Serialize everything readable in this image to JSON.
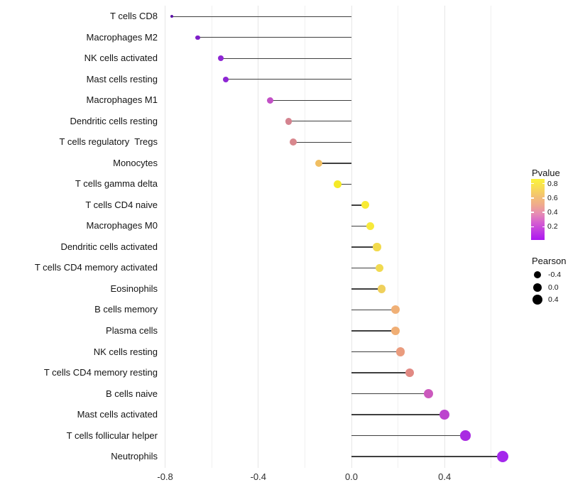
{
  "chart_data": {
    "type": "scatter",
    "style": "lollipop-horizontal",
    "title": "",
    "xlabel": "",
    "ylabel": "",
    "xlim": [
      -0.845,
      0.72
    ],
    "x_ticks": [
      -0.8,
      -0.4,
      0.0,
      0.4
    ],
    "x_tick_labels": [
      "-0.8",
      "-0.4",
      "0.0",
      "0.4"
    ],
    "gridline_values": [
      -0.8,
      -0.6,
      -0.4,
      -0.2,
      0.0,
      0.2,
      0.4,
      0.6
    ],
    "grid": "vertical only, light gray, white background",
    "baseline_x": 0.0,
    "points": [
      {
        "label": "T cells CD8",
        "pearson": -0.77,
        "dot_color": "#5C12A6",
        "dot_radius": 2.0
      },
      {
        "label": "Macrophages M2",
        "pearson": -0.66,
        "dot_color": "#7E1EC8",
        "dot_radius": 3.2
      },
      {
        "label": "NK cells activated",
        "pearson": -0.56,
        "dot_color": "#8E26D4",
        "dot_radius": 4.0
      },
      {
        "label": "Mast cells resting",
        "pearson": -0.54,
        "dot_color": "#8E26D4",
        "dot_radius": 4.1
      },
      {
        "label": "Macrophages M1",
        "pearson": -0.35,
        "dot_color": "#C250C6",
        "dot_radius": 4.6
      },
      {
        "label": "Dendritic cells resting",
        "pearson": -0.27,
        "dot_color": "#D4838F",
        "dot_radius": 4.9
      },
      {
        "label": "T cells regulatory  Tregs",
        "pearson": -0.25,
        "dot_color": "#D8878D",
        "dot_radius": 5.0
      },
      {
        "label": "Monocytes",
        "pearson": -0.14,
        "dot_color": "#F0BE62",
        "dot_radius": 5.2
      },
      {
        "label": "T cells gamma delta",
        "pearson": -0.06,
        "dot_color": "#F5EA27",
        "dot_radius": 5.4
      },
      {
        "label": "T cells CD4 naive",
        "pearson": 0.06,
        "dot_color": "#F8EB34",
        "dot_radius": 5.5
      },
      {
        "label": "Macrophages M0",
        "pearson": 0.08,
        "dot_color": "#F7E93B",
        "dot_radius": 5.6
      },
      {
        "label": "Dendritic cells activated",
        "pearson": 0.11,
        "dot_color": "#F2DA4C",
        "dot_radius": 5.7
      },
      {
        "label": "T cells CD4 memory activated",
        "pearson": 0.12,
        "dot_color": "#F1DA50",
        "dot_radius": 5.7
      },
      {
        "label": "Eosinophils",
        "pearson": 0.13,
        "dot_color": "#EFD05C",
        "dot_radius": 5.8
      },
      {
        "label": "B cells memory",
        "pearson": 0.19,
        "dot_color": "#F0B076",
        "dot_radius": 6.0
      },
      {
        "label": "Plasma cells",
        "pearson": 0.19,
        "dot_color": "#F0AE74",
        "dot_radius": 6.0
      },
      {
        "label": "NK cells resting",
        "pearson": 0.21,
        "dot_color": "#EA9C7E",
        "dot_radius": 6.1
      },
      {
        "label": "T cells CD4 memory resting",
        "pearson": 0.25,
        "dot_color": "#E18983",
        "dot_radius": 6.3
      },
      {
        "label": "B cells naive",
        "pearson": 0.33,
        "dot_color": "#CB59BD",
        "dot_radius": 6.6
      },
      {
        "label": "Mast cells activated",
        "pearson": 0.4,
        "dot_color": "#BC44CE",
        "dot_radius": 6.9
      },
      {
        "label": "T cells follicular helper",
        "pearson": 0.49,
        "dot_color": "#A92BE2",
        "dot_radius": 7.3
      },
      {
        "label": "Neutrophils",
        "pearson": 0.65,
        "dot_color": "#A428EC",
        "dot_radius": 8.0
      }
    ],
    "stem_color": "#3f3f3f",
    "legend_position": "right",
    "legends": {
      "pvalue": {
        "title": "Pvalue",
        "tick_labels": [
          "0.8",
          "0.6",
          "0.4",
          "0.2"
        ],
        "gradient_stops_bottom_to_top": [
          "#AC17F1",
          "#C03BE1",
          "#D55FD0",
          "#E68BB4",
          "#EFA98E",
          "#F3C173",
          "#F8DC55",
          "#FBF43B"
        ]
      },
      "pearson": {
        "title": "Pearson",
        "items": [
          {
            "label": "-0.4",
            "radius": 5
          },
          {
            "label": "0.0",
            "radius": 6
          },
          {
            "label": "0.4",
            "radius": 7
          }
        ],
        "dot_color": "#000000"
      }
    }
  }
}
